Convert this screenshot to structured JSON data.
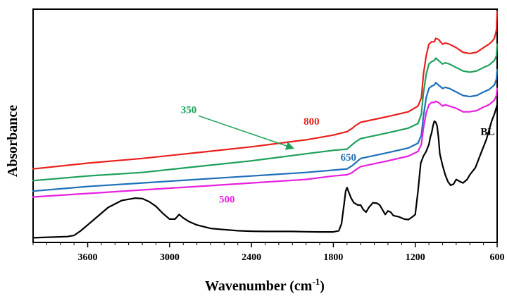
{
  "chart_data": {
    "type": "line",
    "xlabel": "Wavenumber (cm-1)",
    "xlabel_parts": {
      "main": "Wavenumber (cm",
      "sup": "-1",
      "close": ")"
    },
    "ylabel": "Absorbance",
    "x_reversed": true,
    "xlim": [
      4000,
      600
    ],
    "ylim": [
      0,
      1
    ],
    "x_ticks": [
      3600,
      3000,
      2400,
      1800,
      1200,
      600
    ],
    "x_tick_labels": [
      "3600",
      "3000",
      "2400",
      "1800",
      "1200",
      "600"
    ],
    "y_ticks_visible": false,
    "grid": false,
    "legend": "none; series labelled inline",
    "series": [
      {
        "name": "800",
        "color": "#e8201c",
        "points": [
          [
            4000,
            0.315
          ],
          [
            3600,
            0.34
          ],
          [
            3200,
            0.36
          ],
          [
            2800,
            0.385
          ],
          [
            2400,
            0.41
          ],
          [
            2000,
            0.44
          ],
          [
            1800,
            0.46
          ],
          [
            1700,
            0.475
          ],
          [
            1660,
            0.49
          ],
          [
            1640,
            0.5
          ],
          [
            1600,
            0.515
          ],
          [
            1400,
            0.54
          ],
          [
            1250,
            0.56
          ],
          [
            1180,
            0.585
          ],
          [
            1155,
            0.62
          ],
          [
            1140,
            0.72
          ],
          [
            1120,
            0.8
          ],
          [
            1100,
            0.85
          ],
          [
            1080,
            0.86
          ],
          [
            1060,
            0.86
          ],
          [
            1050,
            0.875
          ],
          [
            1030,
            0.87
          ],
          [
            1000,
            0.85
          ],
          [
            980,
            0.855
          ],
          [
            950,
            0.85
          ],
          [
            900,
            0.835
          ],
          [
            850,
            0.815
          ],
          [
            800,
            0.81
          ],
          [
            750,
            0.815
          ],
          [
            700,
            0.835
          ],
          [
            660,
            0.85
          ],
          [
            640,
            0.86
          ],
          [
            620,
            0.875
          ],
          [
            605,
            0.91
          ],
          [
            600,
            0.99
          ]
        ]
      },
      {
        "name": "350",
        "color": "#1fa05a",
        "points": [
          [
            4000,
            0.265
          ],
          [
            3600,
            0.285
          ],
          [
            3200,
            0.3
          ],
          [
            2800,
            0.325
          ],
          [
            2400,
            0.35
          ],
          [
            2000,
            0.38
          ],
          [
            1800,
            0.395
          ],
          [
            1700,
            0.4
          ],
          [
            1660,
            0.42
          ],
          [
            1640,
            0.43
          ],
          [
            1600,
            0.445
          ],
          [
            1400,
            0.47
          ],
          [
            1250,
            0.49
          ],
          [
            1180,
            0.51
          ],
          [
            1155,
            0.55
          ],
          [
            1140,
            0.64
          ],
          [
            1120,
            0.72
          ],
          [
            1100,
            0.765
          ],
          [
            1080,
            0.775
          ],
          [
            1060,
            0.78
          ],
          [
            1050,
            0.79
          ],
          [
            1030,
            0.78
          ],
          [
            1000,
            0.765
          ],
          [
            980,
            0.77
          ],
          [
            950,
            0.765
          ],
          [
            900,
            0.75
          ],
          [
            850,
            0.735
          ],
          [
            800,
            0.73
          ],
          [
            750,
            0.735
          ],
          [
            700,
            0.75
          ],
          [
            660,
            0.76
          ],
          [
            640,
            0.77
          ],
          [
            620,
            0.78
          ],
          [
            605,
            0.8
          ],
          [
            600,
            0.85
          ]
        ]
      },
      {
        "name": "650",
        "color": "#1f6fba",
        "points": [
          [
            4000,
            0.22
          ],
          [
            3600,
            0.24
          ],
          [
            3200,
            0.255
          ],
          [
            2800,
            0.27
          ],
          [
            2400,
            0.285
          ],
          [
            2000,
            0.3
          ],
          [
            1800,
            0.31
          ],
          [
            1700,
            0.315
          ],
          [
            1660,
            0.33
          ],
          [
            1640,
            0.34
          ],
          [
            1600,
            0.36
          ],
          [
            1400,
            0.385
          ],
          [
            1250,
            0.405
          ],
          [
            1180,
            0.425
          ],
          [
            1155,
            0.46
          ],
          [
            1140,
            0.54
          ],
          [
            1120,
            0.62
          ],
          [
            1100,
            0.66
          ],
          [
            1080,
            0.67
          ],
          [
            1060,
            0.675
          ],
          [
            1050,
            0.685
          ],
          [
            1030,
            0.675
          ],
          [
            1000,
            0.66
          ],
          [
            980,
            0.665
          ],
          [
            950,
            0.66
          ],
          [
            900,
            0.645
          ],
          [
            850,
            0.63
          ],
          [
            800,
            0.625
          ],
          [
            750,
            0.63
          ],
          [
            700,
            0.645
          ],
          [
            660,
            0.655
          ],
          [
            640,
            0.665
          ],
          [
            620,
            0.675
          ],
          [
            605,
            0.7
          ],
          [
            600,
            0.74
          ]
        ]
      },
      {
        "name": "500",
        "color": "#e820e0",
        "points": [
          [
            4000,
            0.195
          ],
          [
            3600,
            0.21
          ],
          [
            3200,
            0.225
          ],
          [
            2800,
            0.24
          ],
          [
            2400,
            0.255
          ],
          [
            2000,
            0.27
          ],
          [
            1800,
            0.285
          ],
          [
            1700,
            0.29
          ],
          [
            1660,
            0.3
          ],
          [
            1640,
            0.31
          ],
          [
            1600,
            0.325
          ],
          [
            1400,
            0.35
          ],
          [
            1250,
            0.37
          ],
          [
            1180,
            0.39
          ],
          [
            1155,
            0.42
          ],
          [
            1140,
            0.49
          ],
          [
            1120,
            0.555
          ],
          [
            1100,
            0.59
          ],
          [
            1080,
            0.6
          ],
          [
            1060,
            0.6
          ],
          [
            1050,
            0.605
          ],
          [
            1030,
            0.6
          ],
          [
            1000,
            0.585
          ],
          [
            980,
            0.59
          ],
          [
            950,
            0.585
          ],
          [
            900,
            0.575
          ],
          [
            850,
            0.56
          ],
          [
            800,
            0.56
          ],
          [
            750,
            0.565
          ],
          [
            700,
            0.58
          ],
          [
            660,
            0.59
          ],
          [
            640,
            0.6
          ],
          [
            620,
            0.61
          ],
          [
            605,
            0.63
          ],
          [
            600,
            0.66
          ]
        ]
      },
      {
        "name": "BL",
        "color": "#000000",
        "points": [
          [
            4000,
            0.02
          ],
          [
            3750,
            0.025
          ],
          [
            3700,
            0.03
          ],
          [
            3650,
            0.05
          ],
          [
            3550,
            0.1
          ],
          [
            3450,
            0.15
          ],
          [
            3350,
            0.18
          ],
          [
            3250,
            0.19
          ],
          [
            3200,
            0.188
          ],
          [
            3150,
            0.175
          ],
          [
            3100,
            0.155
          ],
          [
            3050,
            0.125
          ],
          [
            3000,
            0.1
          ],
          [
            2960,
            0.1
          ],
          [
            2930,
            0.12
          ],
          [
            2900,
            0.105
          ],
          [
            2860,
            0.09
          ],
          [
            2800,
            0.075
          ],
          [
            2700,
            0.06
          ],
          [
            2600,
            0.055
          ],
          [
            2500,
            0.05
          ],
          [
            2400,
            0.048
          ],
          [
            2300,
            0.047
          ],
          [
            2200,
            0.047
          ],
          [
            2100,
            0.047
          ],
          [
            2000,
            0.046
          ],
          [
            1900,
            0.045
          ],
          [
            1800,
            0.045
          ],
          [
            1760,
            0.05
          ],
          [
            1740,
            0.08
          ],
          [
            1720,
            0.17
          ],
          [
            1710,
            0.22
          ],
          [
            1700,
            0.235
          ],
          [
            1690,
            0.22
          ],
          [
            1670,
            0.19
          ],
          [
            1650,
            0.17
          ],
          [
            1620,
            0.16
          ],
          [
            1600,
            0.16
          ],
          [
            1580,
            0.14
          ],
          [
            1560,
            0.13
          ],
          [
            1540,
            0.15
          ],
          [
            1510,
            0.17
          ],
          [
            1480,
            0.168
          ],
          [
            1460,
            0.16
          ],
          [
            1440,
            0.14
          ],
          [
            1420,
            0.12
          ],
          [
            1400,
            0.135
          ],
          [
            1380,
            0.13
          ],
          [
            1360,
            0.115
          ],
          [
            1320,
            0.11
          ],
          [
            1280,
            0.1
          ],
          [
            1250,
            0.098
          ],
          [
            1220,
            0.11
          ],
          [
            1200,
            0.12
          ],
          [
            1180,
            0.22
          ],
          [
            1160,
            0.34
          ],
          [
            1140,
            0.37
          ],
          [
            1120,
            0.39
          ],
          [
            1100,
            0.42
          ],
          [
            1090,
            0.45
          ],
          [
            1080,
            0.47
          ],
          [
            1070,
            0.5
          ],
          [
            1060,
            0.52
          ],
          [
            1050,
            0.515
          ],
          [
            1040,
            0.5
          ],
          [
            1030,
            0.45
          ],
          [
            1020,
            0.38
          ],
          [
            1000,
            0.33
          ],
          [
            980,
            0.29
          ],
          [
            960,
            0.26
          ],
          [
            940,
            0.245
          ],
          [
            920,
            0.25
          ],
          [
            900,
            0.27
          ],
          [
            870,
            0.26
          ],
          [
            850,
            0.255
          ],
          [
            820,
            0.27
          ],
          [
            800,
            0.29
          ],
          [
            760,
            0.32
          ],
          [
            720,
            0.38
          ],
          [
            700,
            0.41
          ],
          [
            680,
            0.44
          ],
          [
            660,
            0.48
          ],
          [
            640,
            0.52
          ],
          [
            620,
            0.55
          ],
          [
            610,
            0.57
          ],
          [
            600,
            0.59
          ]
        ]
      }
    ],
    "annotations": [
      {
        "text": "800",
        "color": "#e8201c",
        "x": 1960,
        "y": 0.505
      },
      {
        "text": "350",
        "color": "#1fa05a",
        "x": 2860,
        "y": 0.555,
        "arrow_to": [
          2100,
          0.405
        ]
      },
      {
        "text": "650",
        "color": "#1f6fba",
        "x": 1690,
        "y": 0.35
      },
      {
        "text": "500",
        "color": "#e820e0",
        "x": 2580,
        "y": 0.17
      },
      {
        "text": "BL",
        "color": "#000000",
        "x": 670,
        "y": 0.46
      }
    ]
  }
}
